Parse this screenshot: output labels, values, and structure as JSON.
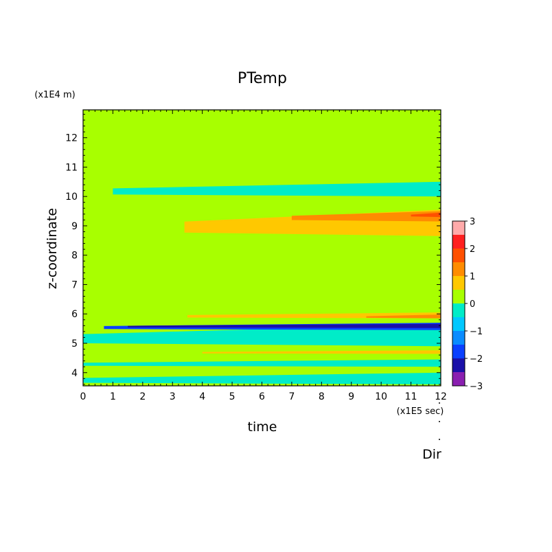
{
  "chart_data": {
    "type": "heatmap",
    "title": "PTemp",
    "xlabel": "time",
    "ylabel": "z-coordinate",
    "x_unit": "(x1E5 sec)",
    "y_unit": "(x1E4 m)",
    "footer": "Dir",
    "xlim": [
      0,
      12
    ],
    "ylim": [
      3.55,
      12.95
    ],
    "x_ticks": [
      "0",
      "1",
      "2",
      "3",
      "4",
      "5",
      "6",
      "7",
      "8",
      "9",
      "10",
      "11",
      "12"
    ],
    "y_ticks": [
      "4",
      "5",
      "6",
      "7",
      "8",
      "9",
      "10",
      "11",
      "12"
    ],
    "grid": false,
    "colorbar": {
      "placement": "right",
      "levels": [
        -3,
        -2.5,
        -2,
        -1.5,
        -1,
        -0.5,
        0,
        0.5,
        1,
        1.5,
        2,
        2.5,
        3
      ],
      "tick_labels": [
        "3",
        "2",
        "1",
        "0",
        "−1",
        "−2",
        "−3"
      ],
      "colors": [
        "#8a1fb0",
        "#1a10a8",
        "#0a40ff",
        "#0a8cff",
        "#00c8ff",
        "#00ecc8",
        "#a8ff00",
        "#ffc800",
        "#ff8c00",
        "#ff5000",
        "#ff2020",
        "#ffaaaa"
      ]
    },
    "background_value": 0.25,
    "features": [
      {
        "name": "upper-negative-band",
        "level": -0.25,
        "x": [
          1.0,
          12.0
        ],
        "z": [
          10.0,
          10.5
        ]
      },
      {
        "name": "upper-warm-band",
        "level": 0.75,
        "x": [
          3.4,
          12.0
        ],
        "z": [
          8.65,
          9.55
        ]
      },
      {
        "name": "upper-warm-core",
        "level": 1.25,
        "x": [
          7.0,
          12.0
        ],
        "z": [
          9.15,
          9.5
        ]
      },
      {
        "name": "upper-warm-peak",
        "level": 1.75,
        "x": [
          11.0,
          12.0
        ],
        "z": [
          9.3,
          9.45
        ]
      },
      {
        "name": "mid-warm-band",
        "level": 0.75,
        "x": [
          3.5,
          12.0
        ],
        "z": [
          5.85,
          6.05
        ]
      },
      {
        "name": "mid-warm-core",
        "level": 1.25,
        "x": [
          9.5,
          12.0
        ],
        "z": [
          5.85,
          5.98
        ]
      },
      {
        "name": "cold-layer",
        "level": -0.25,
        "x": [
          0.0,
          12.0
        ],
        "z": [
          4.9,
          5.65
        ]
      },
      {
        "name": "cold-core",
        "level": -1.75,
        "x": [
          0.7,
          12.0
        ],
        "z": [
          5.45,
          5.7
        ]
      },
      {
        "name": "cold-minimum",
        "level": -2.25,
        "x": [
          1.5,
          12.0
        ],
        "z": [
          5.52,
          5.66
        ]
      },
      {
        "name": "lower-warm-band",
        "level": 0.75,
        "x": [
          4.0,
          12.0
        ],
        "z": [
          4.64,
          4.76
        ]
      },
      {
        "name": "lower-negative-band",
        "level": -0.25,
        "x": [
          0.0,
          12.0
        ],
        "z": [
          4.2,
          4.45
        ]
      },
      {
        "name": "bottom-negative-band",
        "level": -0.25,
        "x": [
          0.0,
          12.0
        ],
        "z": [
          3.6,
          4.0
        ]
      }
    ]
  }
}
